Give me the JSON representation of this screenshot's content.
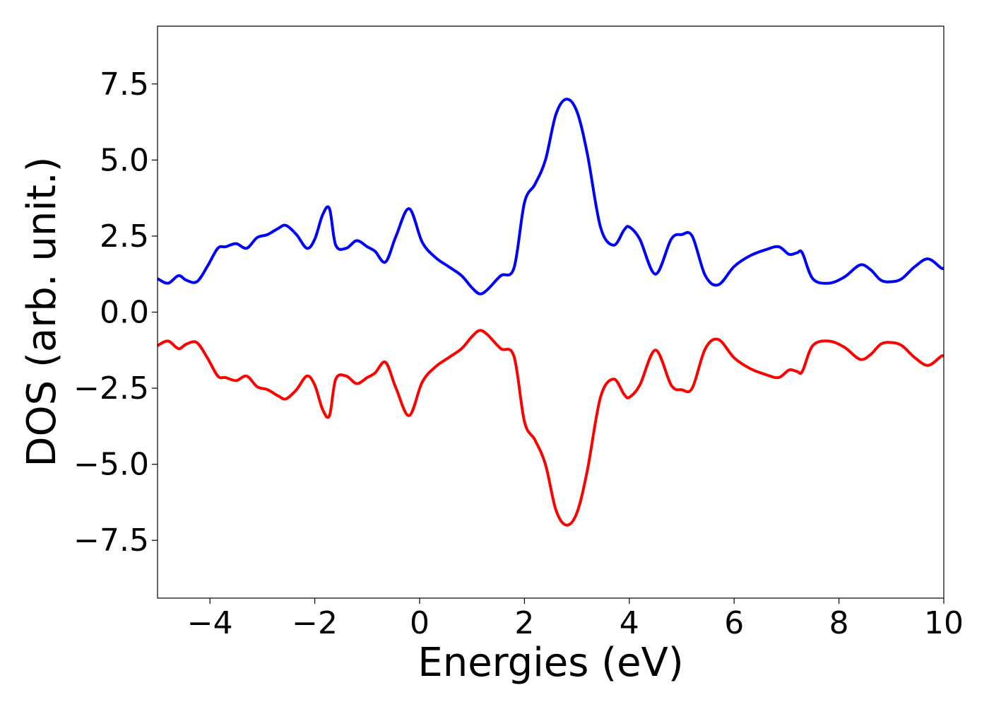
{
  "chart_data": {
    "type": "line",
    "title": "",
    "xlabel": "Energies (eV)",
    "ylabel": "DOS (arb. unit.)",
    "xlim": [
      -5,
      10
    ],
    "ylim": [
      -9.4,
      9.4
    ],
    "grid": false,
    "legend": "none",
    "x_ticks": [
      -4,
      -2,
      0,
      2,
      4,
      6,
      8,
      10
    ],
    "x_tick_labels": [
      "−4",
      "−2",
      "0",
      "2",
      "4",
      "6",
      "8",
      "10"
    ],
    "y_ticks": [
      -7.5,
      -5.0,
      -2.5,
      0.0,
      2.5,
      5.0,
      7.5
    ],
    "y_tick_labels": [
      "−7.5",
      "−5.0",
      "−2.5",
      "0.0",
      "2.5",
      "5.0",
      "7.5"
    ],
    "x": [
      -5.0,
      -4.8,
      -4.6,
      -4.45,
      -4.25,
      -4.05,
      -3.85,
      -3.7,
      -3.5,
      -3.3,
      -3.1,
      -2.9,
      -2.7,
      -2.55,
      -2.35,
      -2.15,
      -2.0,
      -1.85,
      -1.72,
      -1.6,
      -1.4,
      -1.2,
      -1.0,
      -0.85,
      -0.65,
      -0.45,
      -0.2,
      0.05,
      0.3,
      0.55,
      0.8,
      1.0,
      1.15,
      1.3,
      1.55,
      1.8,
      2.0,
      2.2,
      2.4,
      2.6,
      2.8,
      3.0,
      3.2,
      3.45,
      3.7,
      3.9,
      4.0,
      4.2,
      4.5,
      4.8,
      5.0,
      5.2,
      5.45,
      5.7,
      6.0,
      6.3,
      6.6,
      6.85,
      7.05,
      7.2,
      7.3,
      7.5,
      7.8,
      8.1,
      8.4,
      8.6,
      8.8,
      9.0,
      9.2,
      9.45,
      9.7,
      9.95,
      10.0
    ],
    "series": [
      {
        "color": "#0000ff",
        "values": [
          1.1,
          0.95,
          1.2,
          1.05,
          1.0,
          1.5,
          2.1,
          2.15,
          2.25,
          2.1,
          2.45,
          2.55,
          2.75,
          2.85,
          2.55,
          2.1,
          2.4,
          3.2,
          3.4,
          2.2,
          2.1,
          2.35,
          2.15,
          2.0,
          1.65,
          2.5,
          3.4,
          2.3,
          1.8,
          1.5,
          1.2,
          0.8,
          0.6,
          0.75,
          1.2,
          1.45,
          3.6,
          4.2,
          5.0,
          6.5,
          7.0,
          6.6,
          5.2,
          2.8,
          2.2,
          2.7,
          2.8,
          2.4,
          1.25,
          2.4,
          2.55,
          2.5,
          1.2,
          0.9,
          1.5,
          1.85,
          2.05,
          2.15,
          1.9,
          1.95,
          1.95,
          1.1,
          0.95,
          1.15,
          1.55,
          1.4,
          1.05,
          1.0,
          1.1,
          1.5,
          1.75,
          1.45,
          1.45
        ]
      },
      {
        "color": "#ff0000",
        "values": [
          -1.1,
          -0.95,
          -1.2,
          -1.05,
          -1.0,
          -1.5,
          -2.1,
          -2.15,
          -2.25,
          -2.1,
          -2.45,
          -2.55,
          -2.75,
          -2.85,
          -2.55,
          -2.1,
          -2.4,
          -3.2,
          -3.4,
          -2.2,
          -2.1,
          -2.35,
          -2.15,
          -2.0,
          -1.65,
          -2.5,
          -3.4,
          -2.3,
          -1.8,
          -1.5,
          -1.2,
          -0.8,
          -0.6,
          -0.75,
          -1.2,
          -1.45,
          -3.6,
          -4.2,
          -5.0,
          -6.5,
          -7.0,
          -6.6,
          -5.2,
          -2.8,
          -2.2,
          -2.7,
          -2.8,
          -2.4,
          -1.25,
          -2.4,
          -2.55,
          -2.5,
          -1.2,
          -0.9,
          -1.5,
          -1.85,
          -2.05,
          -2.15,
          -1.9,
          -1.95,
          -1.95,
          -1.1,
          -0.95,
          -1.15,
          -1.55,
          -1.4,
          -1.05,
          -1.0,
          -1.1,
          -1.5,
          -1.75,
          -1.45,
          -1.45
        ]
      }
    ]
  }
}
